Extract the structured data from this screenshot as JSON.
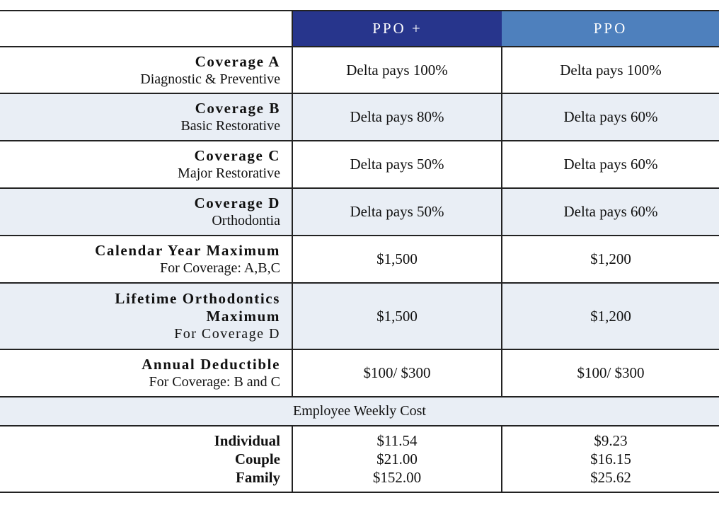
{
  "header": {
    "columns": [
      "PPO +",
      "PPO"
    ]
  },
  "rows": [
    {
      "title": "Coverage A",
      "subtitle": "Diagnostic & Preventive",
      "values": [
        "Delta pays 100%",
        "Delta pays 100%"
      ]
    },
    {
      "title": "Coverage B",
      "subtitle": "Basic Restorative",
      "values": [
        "Delta pays 80%",
        "Delta pays 60%"
      ]
    },
    {
      "title": "Coverage C",
      "subtitle": "Major Restorative",
      "values": [
        "Delta pays 50%",
        "Delta pays 60%"
      ]
    },
    {
      "title": "Coverage D",
      "subtitle": "Orthodontia",
      "values": [
        "Delta pays 50%",
        "Delta pays 60%"
      ]
    },
    {
      "title": "Calendar Year Maximum",
      "subtitle": "For Coverage: A,B,C",
      "values": [
        "$1,500",
        "$1,200"
      ]
    },
    {
      "title": "Lifetime Orthodontics Maximum",
      "subtitle": "For Coverage D",
      "values": [
        "$1,500",
        "$1,200"
      ]
    },
    {
      "title": "Annual Deductible",
      "subtitle": "For Coverage: B and C",
      "values": [
        "$100/ $300",
        "$100/ $300"
      ]
    }
  ],
  "section": "Employee Weekly Cost",
  "cost": {
    "labels": [
      "Individual",
      "Couple",
      "Family"
    ],
    "values": [
      [
        "$11.54",
        "$21.00",
        "$152.00"
      ],
      [
        "$9.23",
        "$16.15",
        "$25.62"
      ]
    ]
  }
}
